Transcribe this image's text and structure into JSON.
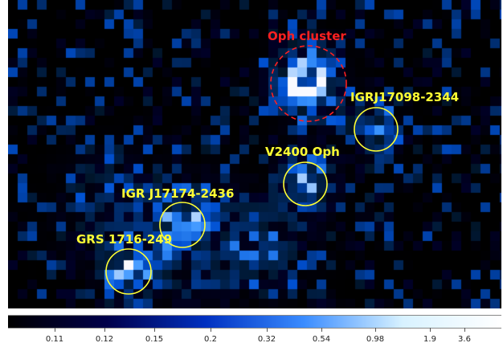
{
  "sources": [
    {
      "id": "oph-cluster",
      "label": "Oph cluster",
      "color": "#ff2020",
      "marker": "dashed-circle"
    },
    {
      "id": "igrj17098",
      "label": "IGRJ17098-2344",
      "color": "#ffff33",
      "marker": "circle"
    },
    {
      "id": "v2400",
      "label": "V2400 Oph",
      "color": "#ffff33",
      "marker": "circle"
    },
    {
      "id": "igr-j17174",
      "label": "IGR J17174-2436",
      "color": "#ffff33",
      "marker": "circle"
    },
    {
      "id": "grs1716",
      "label": "GRS 1716-249",
      "color": "#ffff33",
      "marker": "circle"
    }
  ],
  "colorbar": {
    "scale": "log",
    "colors": [
      "#000000",
      "#00004a",
      "#0030c0",
      "#3a8cff",
      "#d8f2ff",
      "#ffffff"
    ],
    "tick_labels": [
      "0.11",
      "0.12",
      "0.15",
      "0.2",
      "0.32",
      "0.54",
      "0.98",
      "1.9",
      "3.6"
    ]
  }
}
